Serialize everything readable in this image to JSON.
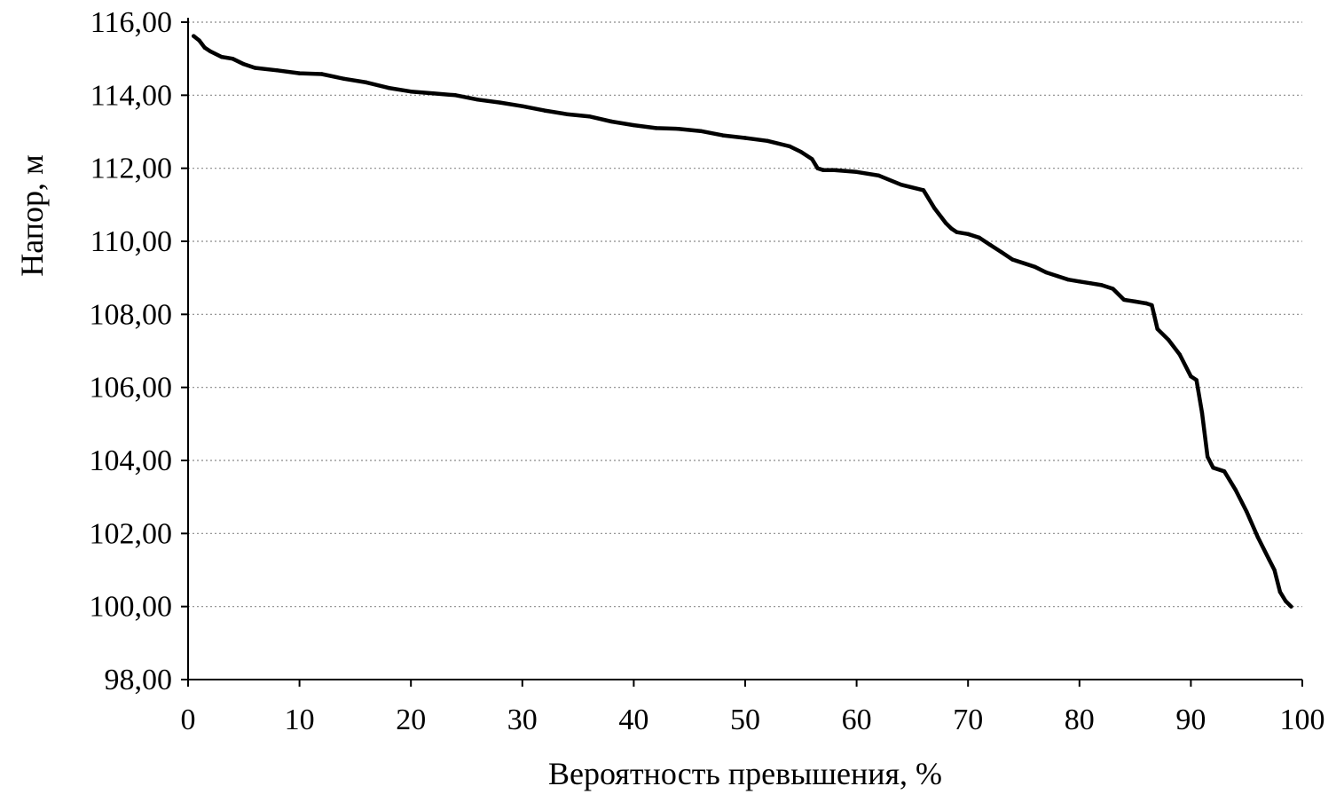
{
  "chart_data": {
    "type": "line",
    "xlabel": "Вероятность превышения, %",
    "ylabel": "Напор, м",
    "xlim": [
      0,
      100
    ],
    "ylim": [
      98,
      116
    ],
    "x_ticks": [
      "0",
      "10",
      "20",
      "30",
      "40",
      "50",
      "60",
      "70",
      "80",
      "90",
      "100"
    ],
    "y_ticks": [
      "98,00",
      "100,00",
      "102,00",
      "104,00",
      "106,00",
      "108,00",
      "110,00",
      "112,00",
      "114,00",
      "116,00"
    ],
    "grid": "horizontal dotted",
    "line_color": "#000000",
    "series": [
      {
        "x": [
          0.5,
          1,
          1.5,
          2,
          3,
          4,
          5,
          6,
          8,
          10,
          12,
          14,
          16,
          18,
          20,
          22,
          24,
          26,
          28,
          30,
          32,
          34,
          36,
          38,
          40,
          42,
          44,
          46,
          48,
          50,
          52,
          54,
          55,
          56,
          56.5,
          57,
          58,
          60,
          62,
          64,
          66,
          67,
          68,
          68.5,
          69,
          70,
          71,
          72,
          73,
          74,
          75,
          76,
          77,
          78,
          79,
          80,
          81,
          82,
          83,
          84,
          85,
          86,
          86.5,
          87,
          88,
          89,
          90,
          90.5,
          91,
          91.5,
          92,
          93,
          94,
          95,
          96,
          97,
          97.5,
          98,
          98.5,
          99
        ],
        "y": [
          115.62,
          115.5,
          115.3,
          115.2,
          115.05,
          115.0,
          114.85,
          114.75,
          114.68,
          114.6,
          114.58,
          114.45,
          114.35,
          114.2,
          114.1,
          114.05,
          114.0,
          113.88,
          113.8,
          113.7,
          113.58,
          113.48,
          113.42,
          113.28,
          113.18,
          113.1,
          113.08,
          113.02,
          112.9,
          112.83,
          112.75,
          112.6,
          112.45,
          112.25,
          112.0,
          111.95,
          111.95,
          111.9,
          111.8,
          111.55,
          111.4,
          110.9,
          110.5,
          110.35,
          110.25,
          110.2,
          110.1,
          109.9,
          109.7,
          109.5,
          109.4,
          109.3,
          109.15,
          109.05,
          108.95,
          108.9,
          108.85,
          108.8,
          108.7,
          108.4,
          108.35,
          108.3,
          108.25,
          107.6,
          107.3,
          106.9,
          106.3,
          106.2,
          105.3,
          104.1,
          103.8,
          103.7,
          103.2,
          102.6,
          101.9,
          101.3,
          101.0,
          100.4,
          100.15,
          100.0
        ]
      }
    ]
  }
}
